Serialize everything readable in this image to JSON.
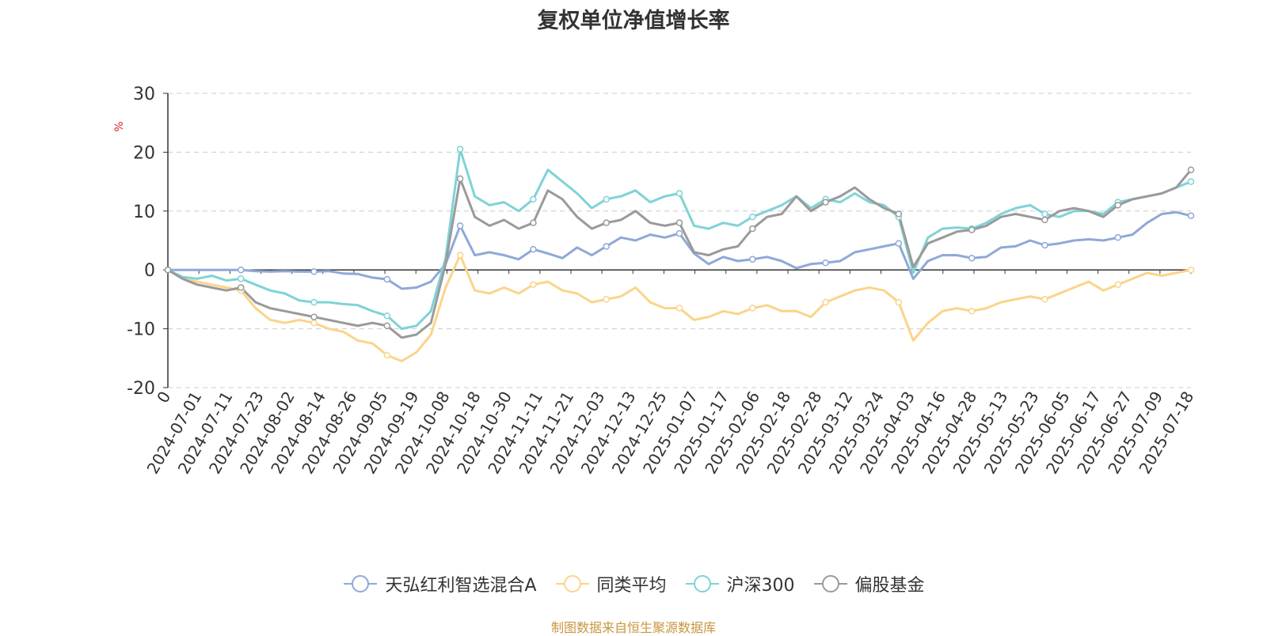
{
  "chart_data": {
    "type": "line",
    "title": "复权单位净值增长率",
    "ylabel": "%",
    "ylim": [
      -20,
      30
    ],
    "yticks": [
      -20,
      -10,
      0,
      10,
      20,
      30
    ],
    "grid": true,
    "legend_position": "bottom",
    "x_tick_labels": [
      "0",
      "2024-07-01",
      "2024-07-11",
      "2024-07-23",
      "2024-08-02",
      "2024-08-14",
      "2024-08-26",
      "2024-09-05",
      "2024-09-19",
      "2024-10-08",
      "2024-10-18",
      "2024-10-30",
      "2024-11-11",
      "2024-11-21",
      "2024-12-03",
      "2024-12-13",
      "2024-12-25",
      "2025-01-07",
      "2025-01-17",
      "2025-02-06",
      "2025-02-18",
      "2025-02-28",
      "2025-03-12",
      "2025-03-24",
      "2025-04-03",
      "2025-04-16",
      "2025-04-28",
      "2025-05-13",
      "2025-05-23",
      "2025-06-05",
      "2025-06-17",
      "2025-06-27",
      "2025-07-09",
      "2025-07-18"
    ],
    "x": [
      "0",
      "2024-06-26",
      "2024-07-01",
      "2024-07-05",
      "2024-07-11",
      "2024-07-17",
      "2024-07-23",
      "2024-07-29",
      "2024-08-02",
      "2024-08-08",
      "2024-08-14",
      "2024-08-20",
      "2024-08-26",
      "2024-08-30",
      "2024-09-05",
      "2024-09-11",
      "2024-09-19",
      "2024-09-25",
      "2024-09-27",
      "2024-09-30",
      "2024-10-08",
      "2024-10-11",
      "2024-10-18",
      "2024-10-24",
      "2024-10-30",
      "2024-11-05",
      "2024-11-11",
      "2024-11-15",
      "2024-11-21",
      "2024-11-27",
      "2024-12-03",
      "2024-12-09",
      "2024-12-13",
      "2024-12-19",
      "2024-12-25",
      "2024-12-31",
      "2025-01-07",
      "2025-01-13",
      "2025-01-17",
      "2025-01-23",
      "2025-02-06",
      "2025-02-12",
      "2025-02-18",
      "2025-02-24",
      "2025-02-28",
      "2025-03-06",
      "2025-03-12",
      "2025-03-18",
      "2025-03-24",
      "2025-03-28",
      "2025-04-03",
      "2025-04-07",
      "2025-04-10",
      "2025-04-16",
      "2025-04-22",
      "2025-04-28",
      "2025-05-07",
      "2025-05-13",
      "2025-05-19",
      "2025-05-23",
      "2025-05-29",
      "2025-06-05",
      "2025-06-11",
      "2025-06-17",
      "2025-06-23",
      "2025-06-27",
      "2025-07-03",
      "2025-07-09",
      "2025-07-15",
      "2025-07-18",
      "2025-07-22"
    ],
    "series": [
      {
        "name": "天弘红利智选混合A",
        "color": "#8fa8d8",
        "values": [
          0,
          0,
          0,
          0,
          0,
          0,
          -0.2,
          -0.3,
          -0.2,
          -0.3,
          -0.3,
          -0.2,
          -0.6,
          -0.7,
          -1.3,
          -1.6,
          -3.2,
          -3.0,
          -2.0,
          1.0,
          7.5,
          2.5,
          3.0,
          2.5,
          1.8,
          3.5,
          2.8,
          2.0,
          3.8,
          2.5,
          4.0,
          5.5,
          5.0,
          6.0,
          5.5,
          6.2,
          2.8,
          1.0,
          2.2,
          1.5,
          1.8,
          2.2,
          1.5,
          0.3,
          1.0,
          1.2,
          1.5,
          3.0,
          3.5,
          4.0,
          4.5,
          -1.5,
          1.5,
          2.5,
          2.5,
          2.0,
          2.2,
          3.8,
          4.0,
          5.0,
          4.2,
          4.5,
          5.0,
          5.2,
          5.0,
          5.5,
          6.0,
          8.0,
          9.5,
          9.8,
          9.2
        ]
      },
      {
        "name": "同类平均",
        "color": "#fbd48a",
        "values": [
          0,
          -1.5,
          -2.0,
          -2.5,
          -3.0,
          -3.5,
          -6.5,
          -8.5,
          -9.0,
          -8.5,
          -9.0,
          -10.0,
          -10.5,
          -12.0,
          -12.5,
          -14.5,
          -15.5,
          -14.0,
          -11.0,
          -3.0,
          2.5,
          -3.5,
          -4.0,
          -3.0,
          -4.0,
          -2.5,
          -2.0,
          -3.5,
          -4.0,
          -5.5,
          -5.0,
          -4.5,
          -3.0,
          -5.5,
          -6.5,
          -6.5,
          -8.5,
          -8.0,
          -7.0,
          -7.5,
          -6.5,
          -6.0,
          -7.0,
          -7.0,
          -8.0,
          -5.5,
          -4.5,
          -3.5,
          -3.0,
          -3.5,
          -5.5,
          -12.0,
          -9.0,
          -7.0,
          -6.5,
          -7.0,
          -6.5,
          -5.5,
          -5.0,
          -4.5,
          -5.0,
          -4.0,
          -3.0,
          -2.0,
          -3.5,
          -2.5,
          -1.5,
          -0.5,
          -1.0,
          -0.5,
          0
        ]
      },
      {
        "name": "沪深300",
        "color": "#7fd3d6",
        "values": [
          0,
          -1.2,
          -1.5,
          -1.0,
          -1.8,
          -1.5,
          -2.5,
          -3.5,
          -4.0,
          -5.2,
          -5.5,
          -5.5,
          -5.8,
          -6.0,
          -7.0,
          -7.8,
          -10.0,
          -9.5,
          -7.0,
          2.0,
          20.5,
          12.5,
          11.0,
          11.5,
          10.0,
          12.0,
          17.0,
          15.0,
          13.0,
          10.5,
          12.0,
          12.5,
          13.5,
          11.5,
          12.5,
          13.0,
          7.5,
          7.0,
          8.0,
          7.5,
          9.0,
          10.0,
          11.0,
          12.5,
          10.5,
          12.0,
          11.5,
          13.0,
          11.5,
          11.0,
          9.0,
          -0.5,
          5.5,
          7.0,
          7.2,
          7.0,
          8.0,
          9.5,
          10.5,
          11.0,
          9.5,
          9.0,
          10.0,
          10.0,
          9.5,
          11.5,
          12.0,
          12.5,
          13.0,
          14.0,
          15.0
        ]
      },
      {
        "name": "偏股基金",
        "color": "#9a9a9a",
        "values": [
          0,
          -1.5,
          -2.5,
          -3.0,
          -3.5,
          -3.0,
          -5.5,
          -6.5,
          -7.0,
          -7.5,
          -8.0,
          -8.5,
          -9.0,
          -9.5,
          -9.0,
          -9.5,
          -11.5,
          -11.0,
          -9.0,
          1.0,
          15.5,
          9.0,
          7.5,
          8.5,
          7.0,
          8.0,
          13.5,
          12.0,
          9.0,
          7.0,
          8.0,
          8.5,
          10.0,
          8.0,
          7.5,
          8.0,
          3.0,
          2.5,
          3.5,
          4.0,
          7.0,
          9.0,
          9.5,
          12.5,
          10.0,
          11.5,
          12.5,
          14.0,
          12.0,
          10.5,
          9.5,
          0.5,
          4.5,
          5.5,
          6.5,
          6.8,
          7.5,
          9.0,
          9.5,
          9.0,
          8.5,
          10.0,
          10.5,
          10.0,
          9.0,
          11.0,
          12.0,
          12.5,
          13.0,
          14.0,
          17.0
        ]
      }
    ]
  },
  "source_note": "制图数据来自恒生聚源数据库"
}
